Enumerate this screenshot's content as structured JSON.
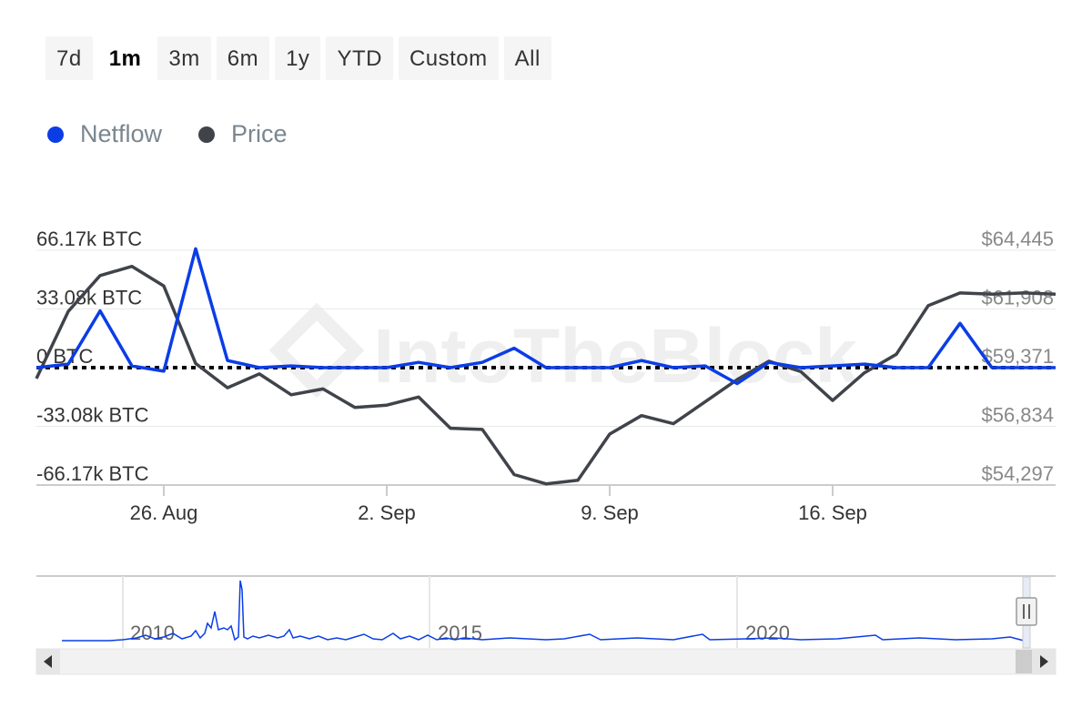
{
  "range_buttons": [
    {
      "label": "7d",
      "active": false
    },
    {
      "label": "1m",
      "active": true
    },
    {
      "label": "3m",
      "active": false
    },
    {
      "label": "6m",
      "active": false
    },
    {
      "label": "1y",
      "active": false
    },
    {
      "label": "YTD",
      "active": false
    },
    {
      "label": "Custom",
      "active": false
    },
    {
      "label": "All",
      "active": false
    }
  ],
  "legend": [
    {
      "name": "Netflow",
      "color": "#0b3de6"
    },
    {
      "name": "Price",
      "color": "#40444a"
    }
  ],
  "watermark": "IntoTheBlock",
  "chart_data": {
    "type": "line",
    "x_ticks": [
      "26. Aug",
      "2. Sep",
      "9. Sep",
      "16. Sep"
    ],
    "y_left_ticks": [
      "66.17k BTC",
      "33.08k BTC",
      "0 BTC",
      "-33.08k BTC",
      "-66.17k BTC"
    ],
    "y_right_ticks": [
      "$64,445",
      "$61,908",
      "$59,371",
      "$56,834",
      "$54,297"
    ],
    "y_left_range": [
      -66170,
      66170
    ],
    "y_right_range": [
      54297,
      64445
    ],
    "x": [
      "Aug 22",
      "Aug 23",
      "Aug 24",
      "Aug 25",
      "Aug 26",
      "Aug 27",
      "Aug 28",
      "Aug 29",
      "Aug 30",
      "Aug 31",
      "Sep 1",
      "Sep 2",
      "Sep 3",
      "Sep 4",
      "Sep 5",
      "Sep 6",
      "Sep 7",
      "Sep 8",
      "Sep 9",
      "Sep 10",
      "Sep 11",
      "Sep 12",
      "Sep 13",
      "Sep 14",
      "Sep 15",
      "Sep 16",
      "Sep 17",
      "Sep 18",
      "Sep 19",
      "Sep 20",
      "Sep 21",
      "Sep 22",
      "Sep 23"
    ],
    "series": [
      {
        "name": "Netflow",
        "color": "#0b3de6",
        "axis": "left",
        "values": [
          0,
          2000,
          32000,
          1000,
          -2000,
          67000,
          4000,
          0,
          1000,
          0,
          0,
          0,
          3000,
          0,
          3000,
          11000,
          0,
          0,
          0,
          4000,
          0,
          1000,
          -9000,
          3000,
          0,
          1000,
          2000,
          0,
          0,
          25000,
          0,
          0,
          0
        ]
      },
      {
        "name": "Price",
        "color": "#40444a",
        "axis": "left",
        "values": [
          58900,
          61800,
          63350,
          63750,
          62900,
          59550,
          58500,
          59100,
          58200,
          58450,
          57650,
          57750,
          58100,
          56750,
          56700,
          54750,
          54350,
          54500,
          56500,
          57300,
          56950,
          57900,
          58850,
          59650,
          59200,
          57950,
          59150,
          59950,
          62050,
          62600,
          62550,
          62600,
          62550
        ]
      }
    ],
    "navigator": {
      "labels": [
        "2010",
        "2015",
        "2020"
      ]
    }
  }
}
